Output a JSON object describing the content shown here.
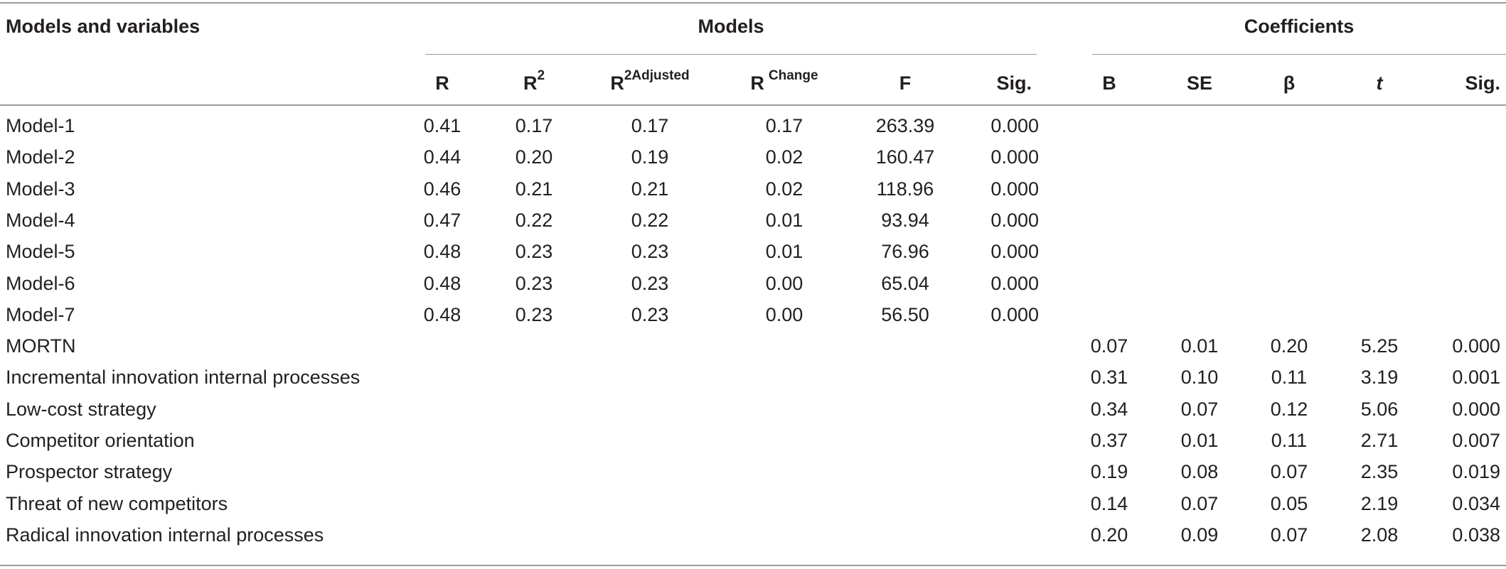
{
  "table": {
    "header": {
      "row_label": "Models and variables",
      "group_models": "Models",
      "group_coefficients": "Coefficients",
      "r": "R",
      "r2_base": "R",
      "r2_sup": "2",
      "r2adj_base": "R",
      "r2adj_sup": "2Adjusted",
      "rchange_base": "R",
      "rchange_sup": "Change",
      "f": "F",
      "sig_models": "Sig.",
      "b": "B",
      "se": "SE",
      "beta": "β",
      "t": "t",
      "sig_coef": "Sig."
    },
    "model_rows": [
      {
        "label": "Model-1",
        "r": "0.41",
        "r2": "0.17",
        "r2adj": "0.17",
        "rchange": "0.17",
        "f": "263.39",
        "sig": "0.000"
      },
      {
        "label": "Model-2",
        "r": "0.44",
        "r2": "0.20",
        "r2adj": "0.19",
        "rchange": "0.02",
        "f": "160.47",
        "sig": "0.000"
      },
      {
        "label": "Model-3",
        "r": "0.46",
        "r2": "0.21",
        "r2adj": "0.21",
        "rchange": "0.02",
        "f": "118.96",
        "sig": "0.000"
      },
      {
        "label": "Model-4",
        "r": "0.47",
        "r2": "0.22",
        "r2adj": "0.22",
        "rchange": "0.01",
        "f": "93.94",
        "sig": "0.000"
      },
      {
        "label": "Model-5",
        "r": "0.48",
        "r2": "0.23",
        "r2adj": "0.23",
        "rchange": "0.01",
        "f": "76.96",
        "sig": "0.000"
      },
      {
        "label": "Model-6",
        "r": "0.48",
        "r2": "0.23",
        "r2adj": "0.23",
        "rchange": "0.00",
        "f": "65.04",
        "sig": "0.000"
      },
      {
        "label": "Model-7",
        "r": "0.48",
        "r2": "0.23",
        "r2adj": "0.23",
        "rchange": "0.00",
        "f": "56.50",
        "sig": "0.000"
      }
    ],
    "coef_rows": [
      {
        "label": "MORTN",
        "b": "0.07",
        "se": "0.01",
        "beta": "0.20",
        "t": "5.25",
        "sig": "0.000"
      },
      {
        "label": "Incremental innovation internal processes",
        "b": "0.31",
        "se": "0.10",
        "beta": "0.11",
        "t": "3.19",
        "sig": "0.001"
      },
      {
        "label": "Low-cost strategy",
        "b": "0.34",
        "se": "0.07",
        "beta": "0.12",
        "t": "5.06",
        "sig": "0.000"
      },
      {
        "label": "Competitor orientation",
        "b": "0.37",
        "se": "0.01",
        "beta": "0.11",
        "t": "2.71",
        "sig": "0.007"
      },
      {
        "label": "Prospector strategy",
        "b": "0.19",
        "se": "0.08",
        "beta": "0.07",
        "t": "2.35",
        "sig": "0.019"
      },
      {
        "label": "Threat of new competitors",
        "b": "0.14",
        "se": "0.07",
        "beta": "0.05",
        "t": "2.19",
        "sig": "0.034"
      },
      {
        "label": "Radical innovation internal processes",
        "b": "0.20",
        "se": "0.09",
        "beta": "0.07",
        "t": "2.08",
        "sig": "0.038"
      }
    ]
  }
}
